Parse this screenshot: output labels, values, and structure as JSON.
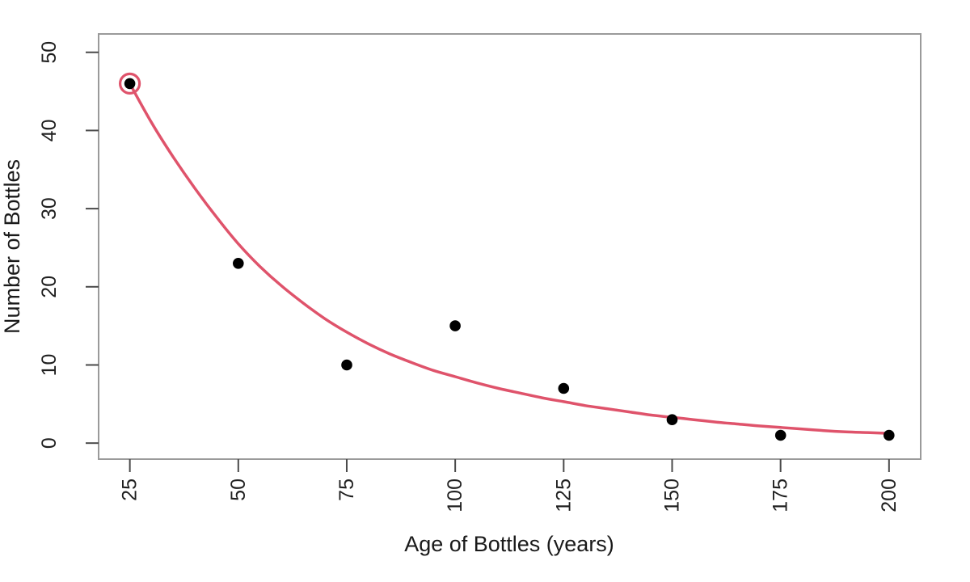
{
  "chart_data": {
    "type": "scatter",
    "title": "",
    "xlabel": "Age of Bottles (years)",
    "ylabel": "Number of Bottles",
    "x_ticks": [
      25,
      50,
      75,
      100,
      125,
      150,
      175,
      200
    ],
    "y_ticks": [
      0,
      10,
      20,
      30,
      40,
      50
    ],
    "xlim": [
      17.8,
      207.3
    ],
    "ylim": [
      -2.05,
      52.35
    ],
    "grid": false,
    "legend": "none",
    "points": [
      {
        "x": 25,
        "y": 46
      },
      {
        "x": 50,
        "y": 23
      },
      {
        "x": 75,
        "y": 10
      },
      {
        "x": 100,
        "y": 15
      },
      {
        "x": 125,
        "y": 7
      },
      {
        "x": 150,
        "y": 3
      },
      {
        "x": 175,
        "y": 1
      },
      {
        "x": 200,
        "y": 1
      }
    ],
    "highlighted_point": {
      "x": 25,
      "y": 46,
      "marker": "open-circle-ring"
    },
    "fit_curve": {
      "name": "exponential-decay-fit",
      "samples": [
        [
          25,
          46.0
        ],
        [
          30,
          41.0
        ],
        [
          35,
          36.6
        ],
        [
          40,
          32.6
        ],
        [
          45,
          28.9
        ],
        [
          50,
          25.5
        ],
        [
          55,
          22.6
        ],
        [
          60,
          20.1
        ],
        [
          65,
          17.9
        ],
        [
          70,
          15.9
        ],
        [
          75,
          14.2
        ],
        [
          80,
          12.7
        ],
        [
          85,
          11.4
        ],
        [
          90,
          10.3
        ],
        [
          95,
          9.3
        ],
        [
          100,
          8.5
        ],
        [
          105,
          7.7
        ],
        [
          110,
          7.0
        ],
        [
          115,
          6.4
        ],
        [
          120,
          5.8
        ],
        [
          125,
          5.3
        ],
        [
          130,
          4.8
        ],
        [
          135,
          4.4
        ],
        [
          140,
          4.0
        ],
        [
          145,
          3.6
        ],
        [
          150,
          3.3
        ],
        [
          155,
          3.0
        ],
        [
          160,
          2.7
        ],
        [
          165,
          2.45
        ],
        [
          170,
          2.2
        ],
        [
          175,
          2.0
        ],
        [
          180,
          1.8
        ],
        [
          185,
          1.6
        ],
        [
          190,
          1.45
        ],
        [
          195,
          1.35
        ],
        [
          200,
          1.25
        ]
      ]
    },
    "colors": {
      "point": "#000000",
      "curve": "#df536b",
      "highlight_ring": "#df536b",
      "box": "#9a9a9a",
      "tick": "#4a4a4a",
      "label": "#1f1f1f",
      "background": "#ffffff"
    }
  }
}
